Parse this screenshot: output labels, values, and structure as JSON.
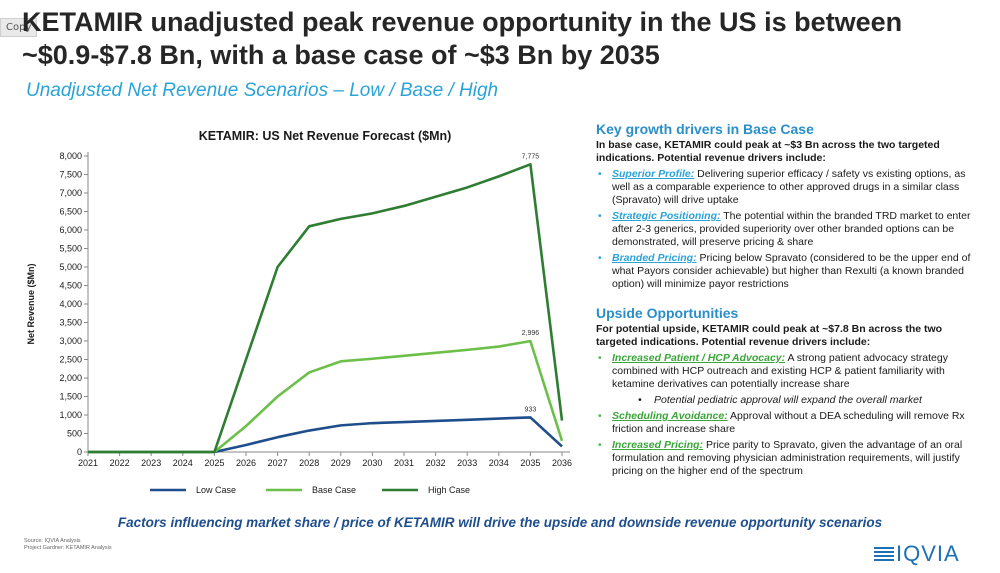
{
  "copy_label": "Copy",
  "title": "KETAMIR unadjusted peak revenue opportunity in the US is between ~$0.9-$7.8 Bn, with a base case of ~$3 Bn by 2035",
  "subtitle": "Unadjusted Net Revenue Scenarios – Low / Base / High",
  "chart_data": {
    "type": "line",
    "title": "KETAMIR: US Net Revenue Forecast ($Mn)",
    "xlabel": "",
    "ylabel": "Net Revenue ($Mn)",
    "x": [
      "2021",
      "2022",
      "2023",
      "2024",
      "2025",
      "2026",
      "2027",
      "2028",
      "2029",
      "2030",
      "2031",
      "2032",
      "2033",
      "2034",
      "2035",
      "2036"
    ],
    "ylim": [
      0,
      8000
    ],
    "yticks": [
      "0",
      "500",
      "1,000",
      "1,500",
      "2,000",
      "2,500",
      "3,000",
      "3,500",
      "4,000",
      "4,500",
      "5,000",
      "5,500",
      "6,000",
      "6,500",
      "7,000",
      "7,500",
      "8,000"
    ],
    "grid": false,
    "legend": "bottom",
    "series": [
      {
        "name": "Low Case",
        "color": "#1f4e8c",
        "values": [
          0,
          0,
          0,
          0,
          0,
          190,
          400,
          580,
          720,
          780,
          810,
          840,
          870,
          905,
          933,
          150
        ]
      },
      {
        "name": "Base Case",
        "color": "#6cc04a",
        "values": [
          0,
          0,
          0,
          0,
          0,
          700,
          1500,
          2150,
          2450,
          2520,
          2600,
          2680,
          2760,
          2850,
          2996,
          300
        ]
      },
      {
        "name": "High Case",
        "color": "#2e7d32",
        "values": [
          0,
          0,
          0,
          0,
          0,
          2500,
          5000,
          6100,
          6300,
          6450,
          6650,
          6900,
          7150,
          7450,
          7775,
          850
        ]
      }
    ],
    "data_labels": [
      {
        "series": 2,
        "index": 14,
        "text": "7,775"
      },
      {
        "series": 1,
        "index": 14,
        "text": "2,996"
      },
      {
        "series": 0,
        "index": 14,
        "text": "933"
      }
    ]
  },
  "drivers": {
    "heading": "Key growth drivers in Base Case",
    "lead": "In base case, KETAMIR could peak at ~$3 Bn across the two targeted indications. Potential revenue drivers include:",
    "items": [
      {
        "label": "Superior Profile:",
        "text": " Delivering superior efficacy / safety vs existing options, as well as a comparable experience to other approved drugs in a similar class (Spravato) will drive uptake"
      },
      {
        "label": "Strategic Positioning:",
        "text": " The potential within the branded TRD market to enter after 2-3 generics, provided superiority over other branded options can be demonstrated, will preserve pricing & share"
      },
      {
        "label": "Branded Pricing:",
        "text": " Pricing below Spravato (considered to be the upper end of what Payors consider achievable) but higher than Rexulti (a known branded option) will minimize payor restrictions"
      }
    ]
  },
  "upside": {
    "heading": "Upside Opportunities",
    "lead": "For potential upside, KETAMIR could peak at ~$7.8 Bn across the two targeted indications. Potential revenue drivers include:",
    "items": [
      {
        "label": "Increased Patient / HCP Advocacy:",
        "text": " A strong patient advocacy strategy combined with HCP outreach and existing HCP & patient familiarity with ketamine derivatives can potentially increase share"
      },
      {
        "label": "Scheduling Avoidance:",
        "text": " Approval without a DEA scheduling will remove Rx friction and increase share"
      },
      {
        "label": "Increased Pricing:",
        "text": " Price parity to Spravato, given the advantage of an oral formulation and removing physician administration requirements, will justify pricing on the higher end of the spectrum"
      }
    ],
    "subnote": "Potential pediatric approval will expand the overall market"
  },
  "footer": "Factors influencing market share / price of KETAMIR will drive the upside and downside revenue opportunity scenarios",
  "source_line1": "Source: IQVIA Analysis",
  "source_line2": "Project Gardner: KETAMIR Analysis",
  "logo_text": "IQVIA"
}
